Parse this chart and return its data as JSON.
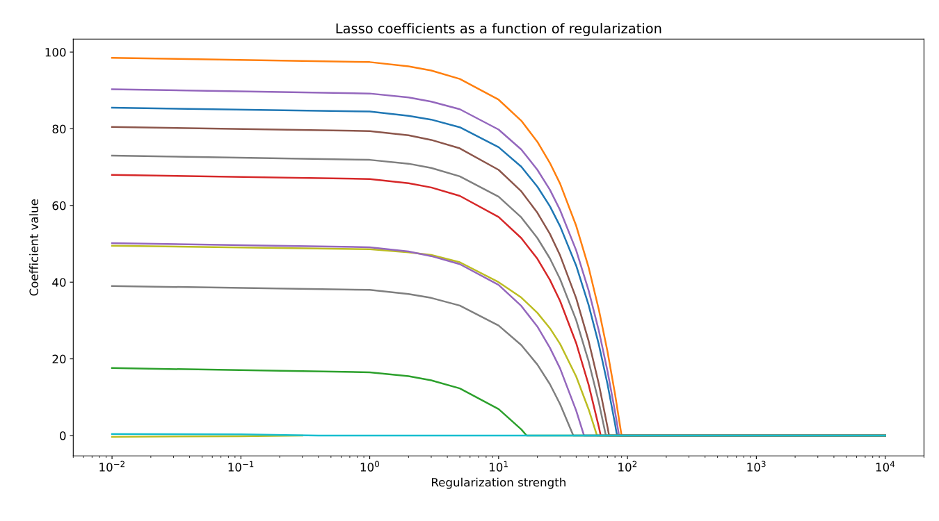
{
  "chart_data": {
    "type": "line",
    "title": "Lasso coefficients as a function of regularization",
    "xlabel": "Regularization strength",
    "ylabel": "Coefficient value",
    "log": "x",
    "grid": false,
    "legend": false,
    "xlim": [
      0.005,
      20000
    ],
    "ylim": [
      -5.3,
      103.4
    ],
    "xticks": [
      {
        "value": 0.01,
        "label": "10$^{−2}$"
      },
      {
        "value": 0.1,
        "label": "10$^{−1}$"
      },
      {
        "value": 1,
        "label": "10$^{0}$"
      },
      {
        "value": 10,
        "label": "10$^{1}$"
      },
      {
        "value": 100,
        "label": "10$^{2}$"
      },
      {
        "value": 1000,
        "label": "10$^{3}$"
      },
      {
        "value": 10000,
        "label": "10$^{4}$"
      }
    ],
    "yticks": [
      0,
      20,
      40,
      60,
      80,
      100
    ],
    "series": [
      {
        "color": "#ff7f0e",
        "x": [
          0.01,
          1,
          2,
          3,
          5,
          10,
          15,
          20,
          25,
          30,
          40,
          50,
          60,
          70,
          80,
          90,
          10000
        ],
        "values": [
          98.5,
          97.4,
          96.3,
          95.2,
          93.0,
          87.6,
          82.1,
          76.6,
          71.1,
          65.7,
          54.7,
          43.8,
          32.8,
          21.9,
          10.9,
          0,
          0
        ]
      },
      {
        "color": "#9467bd",
        "x": [
          0.01,
          1,
          2,
          3,
          5,
          10,
          15,
          20,
          25,
          30,
          40,
          50,
          60,
          70,
          80,
          86,
          10000
        ],
        "values": [
          90.3,
          89.2,
          88.2,
          87.1,
          85.1,
          79.8,
          74.6,
          69.3,
          64.1,
          58.8,
          48.3,
          37.8,
          27.3,
          16.8,
          6.3,
          0,
          0
        ]
      },
      {
        "color": "#1f77b4",
        "x": [
          0.01,
          1,
          2,
          3,
          5,
          10,
          15,
          20,
          25,
          30,
          40,
          50,
          60,
          70,
          80,
          83,
          10000
        ],
        "values": [
          85.5,
          84.5,
          83.4,
          82.4,
          80.4,
          75.2,
          70.1,
          64.9,
          59.8,
          54.6,
          44.3,
          34.0,
          23.7,
          13.4,
          3.1,
          0,
          0
        ]
      },
      {
        "color": "#8c564b",
        "x": [
          0.01,
          1,
          2,
          3,
          5,
          10,
          15,
          20,
          25,
          30,
          40,
          50,
          60,
          70,
          72,
          10000
        ],
        "values": [
          80.5,
          79.4,
          78.3,
          77.1,
          74.9,
          69.3,
          63.7,
          58.1,
          52.6,
          47.0,
          35.8,
          24.6,
          13.4,
          2.2,
          0,
          0
        ]
      },
      {
        "color": "#7f7f7f",
        "x": [
          0.01,
          1,
          2,
          3,
          5,
          10,
          15,
          20,
          25,
          30,
          40,
          50,
          60,
          68,
          10000
        ],
        "values": [
          73,
          71.9,
          70.9,
          69.8,
          67.6,
          62.3,
          56.9,
          51.5,
          46.2,
          40.8,
          30.1,
          19.3,
          8.6,
          0,
          0
        ]
      },
      {
        "color": "#d62728",
        "x": [
          0.01,
          1,
          2,
          3,
          5,
          10,
          15,
          20,
          25,
          30,
          40,
          50,
          60,
          62,
          10000
        ],
        "values": [
          68,
          66.9,
          65.8,
          64.7,
          62.5,
          57.0,
          51.5,
          46.1,
          40.6,
          35.1,
          24.1,
          13.2,
          2.2,
          0,
          0
        ]
      },
      {
        "color": "#bcbd22",
        "x": [
          0.01,
          1,
          2,
          3,
          5,
          10,
          15,
          20,
          25,
          30,
          40,
          50,
          58,
          10000
        ],
        "values": [
          49.5,
          48.6,
          47.8,
          47.1,
          45.2,
          40.0,
          36.0,
          32.0,
          28.0,
          23.9,
          15.4,
          6.8,
          0,
          0
        ]
      },
      {
        "color": "#9467bd",
        "x": [
          0.01,
          1,
          2,
          3,
          5,
          10,
          15,
          20,
          25,
          30,
          40,
          46,
          10000
        ],
        "values": [
          50.2,
          49.1,
          48.0,
          46.8,
          44.7,
          39.3,
          33.8,
          28.4,
          22.9,
          17.5,
          6.5,
          0,
          0
        ]
      },
      {
        "color": "#7f7f7f",
        "x": [
          0.01,
          1,
          2,
          3,
          5,
          10,
          15,
          20,
          25,
          30,
          38,
          10000
        ],
        "values": [
          39,
          38.0,
          36.9,
          35.9,
          33.9,
          28.7,
          23.6,
          18.5,
          13.4,
          8.2,
          0,
          0
        ]
      },
      {
        "color": "#2ca02c",
        "x": [
          0.01,
          1,
          2,
          3,
          5,
          10,
          15,
          16.5,
          10000
        ],
        "values": [
          17.6,
          16.5,
          15.5,
          14.4,
          12.3,
          6.9,
          1.6,
          0,
          0
        ]
      },
      {
        "color": "#bcbd22",
        "x": [
          0.01,
          0.1,
          0.3
        ],
        "values": [
          -0.3,
          -0.2,
          0
        ]
      },
      {
        "color": "#17becf",
        "x": [
          0.01,
          0.1,
          0.4,
          10000
        ],
        "values": [
          0.4,
          0.3,
          0,
          0
        ]
      }
    ]
  }
}
